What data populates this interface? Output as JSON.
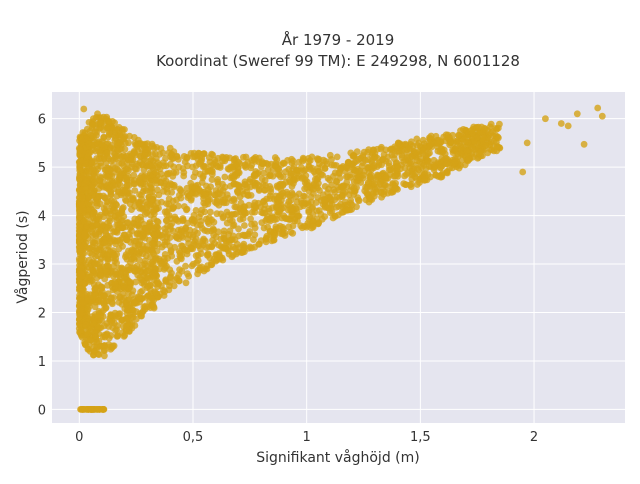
{
  "chart_data": {
    "type": "scatter",
    "title_line1": "År 1979 - 2019",
    "title_line2": "Koordinat (Sweref 99 TM): E 249298, N 6001128",
    "xlabel": "Signifikant våghöjd (m)",
    "ylabel": "Vågperiod (s)",
    "xlim": [
      -0.12,
      2.4
    ],
    "ylim": [
      -0.28,
      6.55
    ],
    "x_ticks": [
      0,
      0.5,
      1,
      1.5,
      2
    ],
    "x_tick_labels": [
      "0",
      "0,5",
      "1",
      "1,5",
      "2"
    ],
    "y_ticks": [
      0,
      1,
      2,
      3,
      4,
      5,
      6
    ],
    "y_tick_labels": [
      "0",
      "1",
      "2",
      "3",
      "4",
      "5",
      "6"
    ],
    "grid": true,
    "legend": "none",
    "marker_color": "#d4a317",
    "plot_background": "#e5e5ef",
    "envelope_estimate": {
      "lower": [
        [
          0.0,
          1.6
        ],
        [
          0.05,
          1.1
        ],
        [
          0.1,
          1.05
        ],
        [
          0.2,
          1.5
        ],
        [
          0.4,
          2.4
        ],
        [
          0.6,
          3.0
        ],
        [
          0.8,
          3.4
        ],
        [
          1.0,
          3.7
        ],
        [
          1.2,
          4.1
        ],
        [
          1.4,
          4.5
        ],
        [
          1.6,
          4.8
        ],
        [
          1.8,
          5.3
        ]
      ],
      "upper": [
        [
          0.0,
          5.6
        ],
        [
          0.05,
          6.0
        ],
        [
          0.1,
          6.1
        ],
        [
          0.2,
          5.8
        ],
        [
          0.3,
          5.5
        ],
        [
          0.5,
          5.3
        ],
        [
          0.8,
          5.2
        ],
        [
          1.0,
          5.2
        ],
        [
          1.2,
          5.3
        ],
        [
          1.4,
          5.5
        ],
        [
          1.6,
          5.7
        ],
        [
          1.8,
          5.9
        ],
        [
          2.0,
          6.0
        ]
      ]
    },
    "zero_period_cluster": {
      "x_range": [
        0,
        0.11
      ],
      "y": 0
    },
    "highlighted_points": [
      {
        "x": 0.02,
        "y": 6.2
      },
      {
        "x": 0.08,
        "y": 6.1
      },
      {
        "x": 0.13,
        "y": 5.95
      },
      {
        "x": 2.28,
        "y": 6.22
      },
      {
        "x": 2.3,
        "y": 6.05
      },
      {
        "x": 2.22,
        "y": 5.47
      },
      {
        "x": 2.19,
        "y": 6.1
      },
      {
        "x": 2.15,
        "y": 5.85
      },
      {
        "x": 2.12,
        "y": 5.9
      },
      {
        "x": 2.05,
        "y": 6.0
      },
      {
        "x": 1.95,
        "y": 4.9
      },
      {
        "x": 1.97,
        "y": 5.5
      }
    ]
  }
}
